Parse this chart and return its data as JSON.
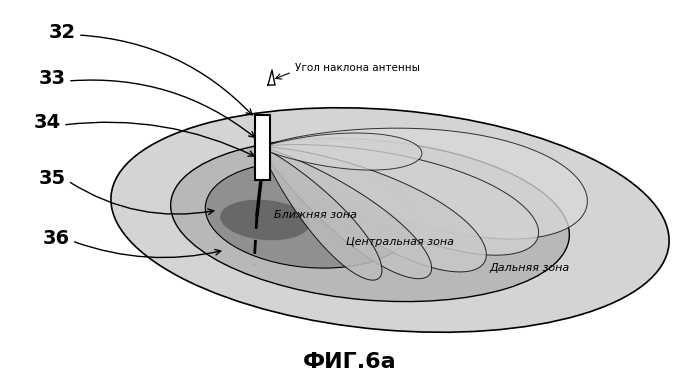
{
  "title": "ФИГ.6а",
  "title_fontsize": 16,
  "label_angle_text": "Угол наклона антенны",
  "label_near": "Ближняя зона",
  "label_central": "Центральная зона",
  "label_far": "Дальняя зона",
  "numbers": [
    "32",
    "33",
    "34",
    "35",
    "36"
  ],
  "bg_color": "#ffffff",
  "far_zone_color": "#d4d4d4",
  "central_zone_color": "#b8b8b8",
  "near_zone_color": "#909090",
  "shadow_color": "#686868"
}
